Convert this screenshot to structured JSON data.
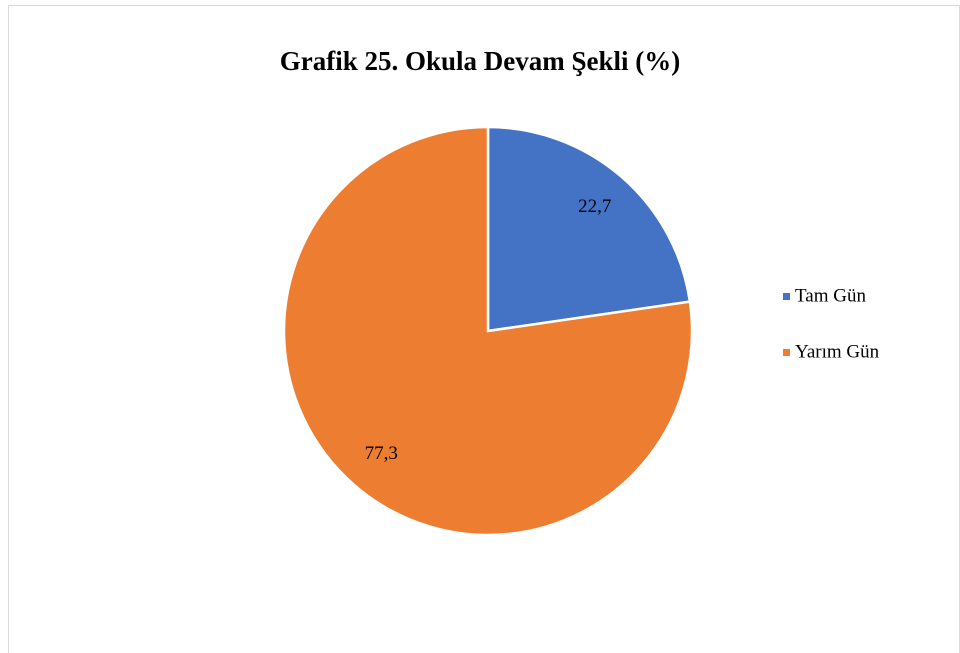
{
  "chart_data": {
    "type": "pie",
    "title": "Grafik 25. Okula Devam Şekli (%)",
    "categories": [
      "Tam Gün",
      "Yarım Gün"
    ],
    "values": [
      22.7,
      77.3
    ],
    "value_labels": [
      "22,7",
      "77,3"
    ],
    "colors": [
      "#4472c4",
      "#ed7d31"
    ],
    "legend": "right"
  }
}
